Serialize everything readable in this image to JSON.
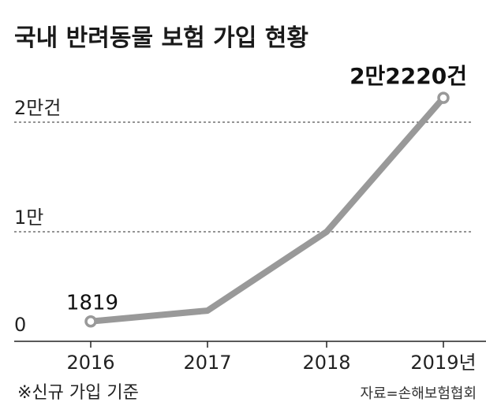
{
  "chart_data": {
    "type": "line",
    "title": "국내 반려동물 보험 가입 현황",
    "categories": [
      "2016",
      "2017",
      "2018",
      "2019년"
    ],
    "series": [
      {
        "values": [
          1819,
          2800,
          10000,
          22220
        ]
      }
    ],
    "ylim": [
      0,
      22220
    ],
    "yticks": [
      {
        "value": 0,
        "label": "0"
      },
      {
        "value": 10000,
        "label": "1만"
      },
      {
        "value": 20000,
        "label": "2만건"
      }
    ],
    "data_labels": [
      {
        "index": 0,
        "label": "1819"
      },
      {
        "index": 3,
        "label": "2만2220건"
      }
    ],
    "gridlines": "dashed",
    "line_color": "#999999",
    "note": "※신규 가입 기준",
    "source": "자료=손해보험협회"
  }
}
